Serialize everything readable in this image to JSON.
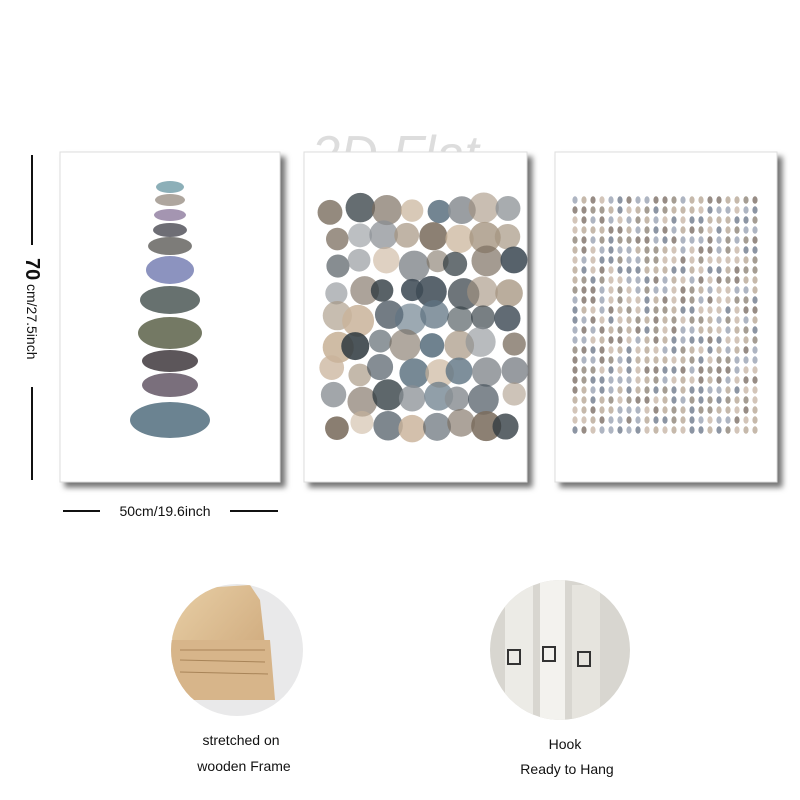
{
  "watermark": "2D Flat",
  "dimensions": {
    "height_number": "70",
    "height_unit": "cm/27.5inch",
    "width": "50cm/19.6inch"
  },
  "features": [
    {
      "lines": [
        "stretched on",
        "wooden Frame"
      ]
    },
    {
      "lines": [
        "Hook",
        "Ready to Hang"
      ]
    }
  ]
}
